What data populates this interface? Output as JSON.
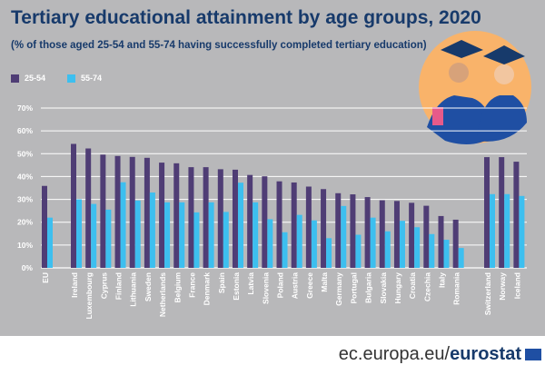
{
  "chart_data": {
    "type": "bar",
    "title": "Tertiary educational attainment by age groups, 2020",
    "subtitle": "(% of those aged 25-54 and 55-74 having successfully completed tertiary education)",
    "categories": [
      "EU",
      "Ireland",
      "Luxembourg",
      "Cyprus",
      "Finland",
      "Lithuania",
      "Sweden",
      "Netherlands",
      "Belgium",
      "France",
      "Denmark",
      "Spain",
      "Estonia",
      "Latvia",
      "Slovenia",
      "Poland",
      "Austria",
      "Greece",
      "Malta",
      "Germany",
      "Portugal",
      "Bulgaria",
      "Slovakia",
      "Hungary",
      "Croatia",
      "Czechia",
      "Italy",
      "Romania",
      "Switzerland",
      "Norway",
      "Iceland"
    ],
    "series": [
      {
        "name": "25-54",
        "color": "#4f3d75",
        "values": [
          35.9,
          54.3,
          52.3,
          49.6,
          49.0,
          48.6,
          48.2,
          46.1,
          45.8,
          44.1,
          44.1,
          43.2,
          43.0,
          40.7,
          40.1,
          37.9,
          37.4,
          35.6,
          34.5,
          32.7,
          32.2,
          31.0,
          29.6,
          29.3,
          28.5,
          27.2,
          22.7,
          21.1,
          48.5,
          48.5,
          46.5
        ]
      },
      {
        "name": "55-74",
        "color": "#3dbfef",
        "values": [
          22.0,
          30.0,
          28.0,
          25.5,
          37.5,
          29.5,
          33.0,
          28.7,
          28.7,
          24.3,
          28.7,
          24.5,
          37.3,
          28.7,
          21.3,
          15.6,
          23.2,
          20.8,
          13.0,
          27.1,
          14.5,
          22.0,
          16.0,
          20.6,
          17.8,
          14.8,
          12.3,
          8.7,
          32.3,
          32.3,
          31.5
        ]
      }
    ],
    "yticks": [
      "0%",
      "10%",
      "20%",
      "30%",
      "40%",
      "50%",
      "60%",
      "70%"
    ],
    "ylim": [
      0,
      70
    ],
    "grid": true,
    "legend": "top-left"
  },
  "footer": {
    "site": "ec.europa.eu/",
    "brand": "eurostat"
  }
}
